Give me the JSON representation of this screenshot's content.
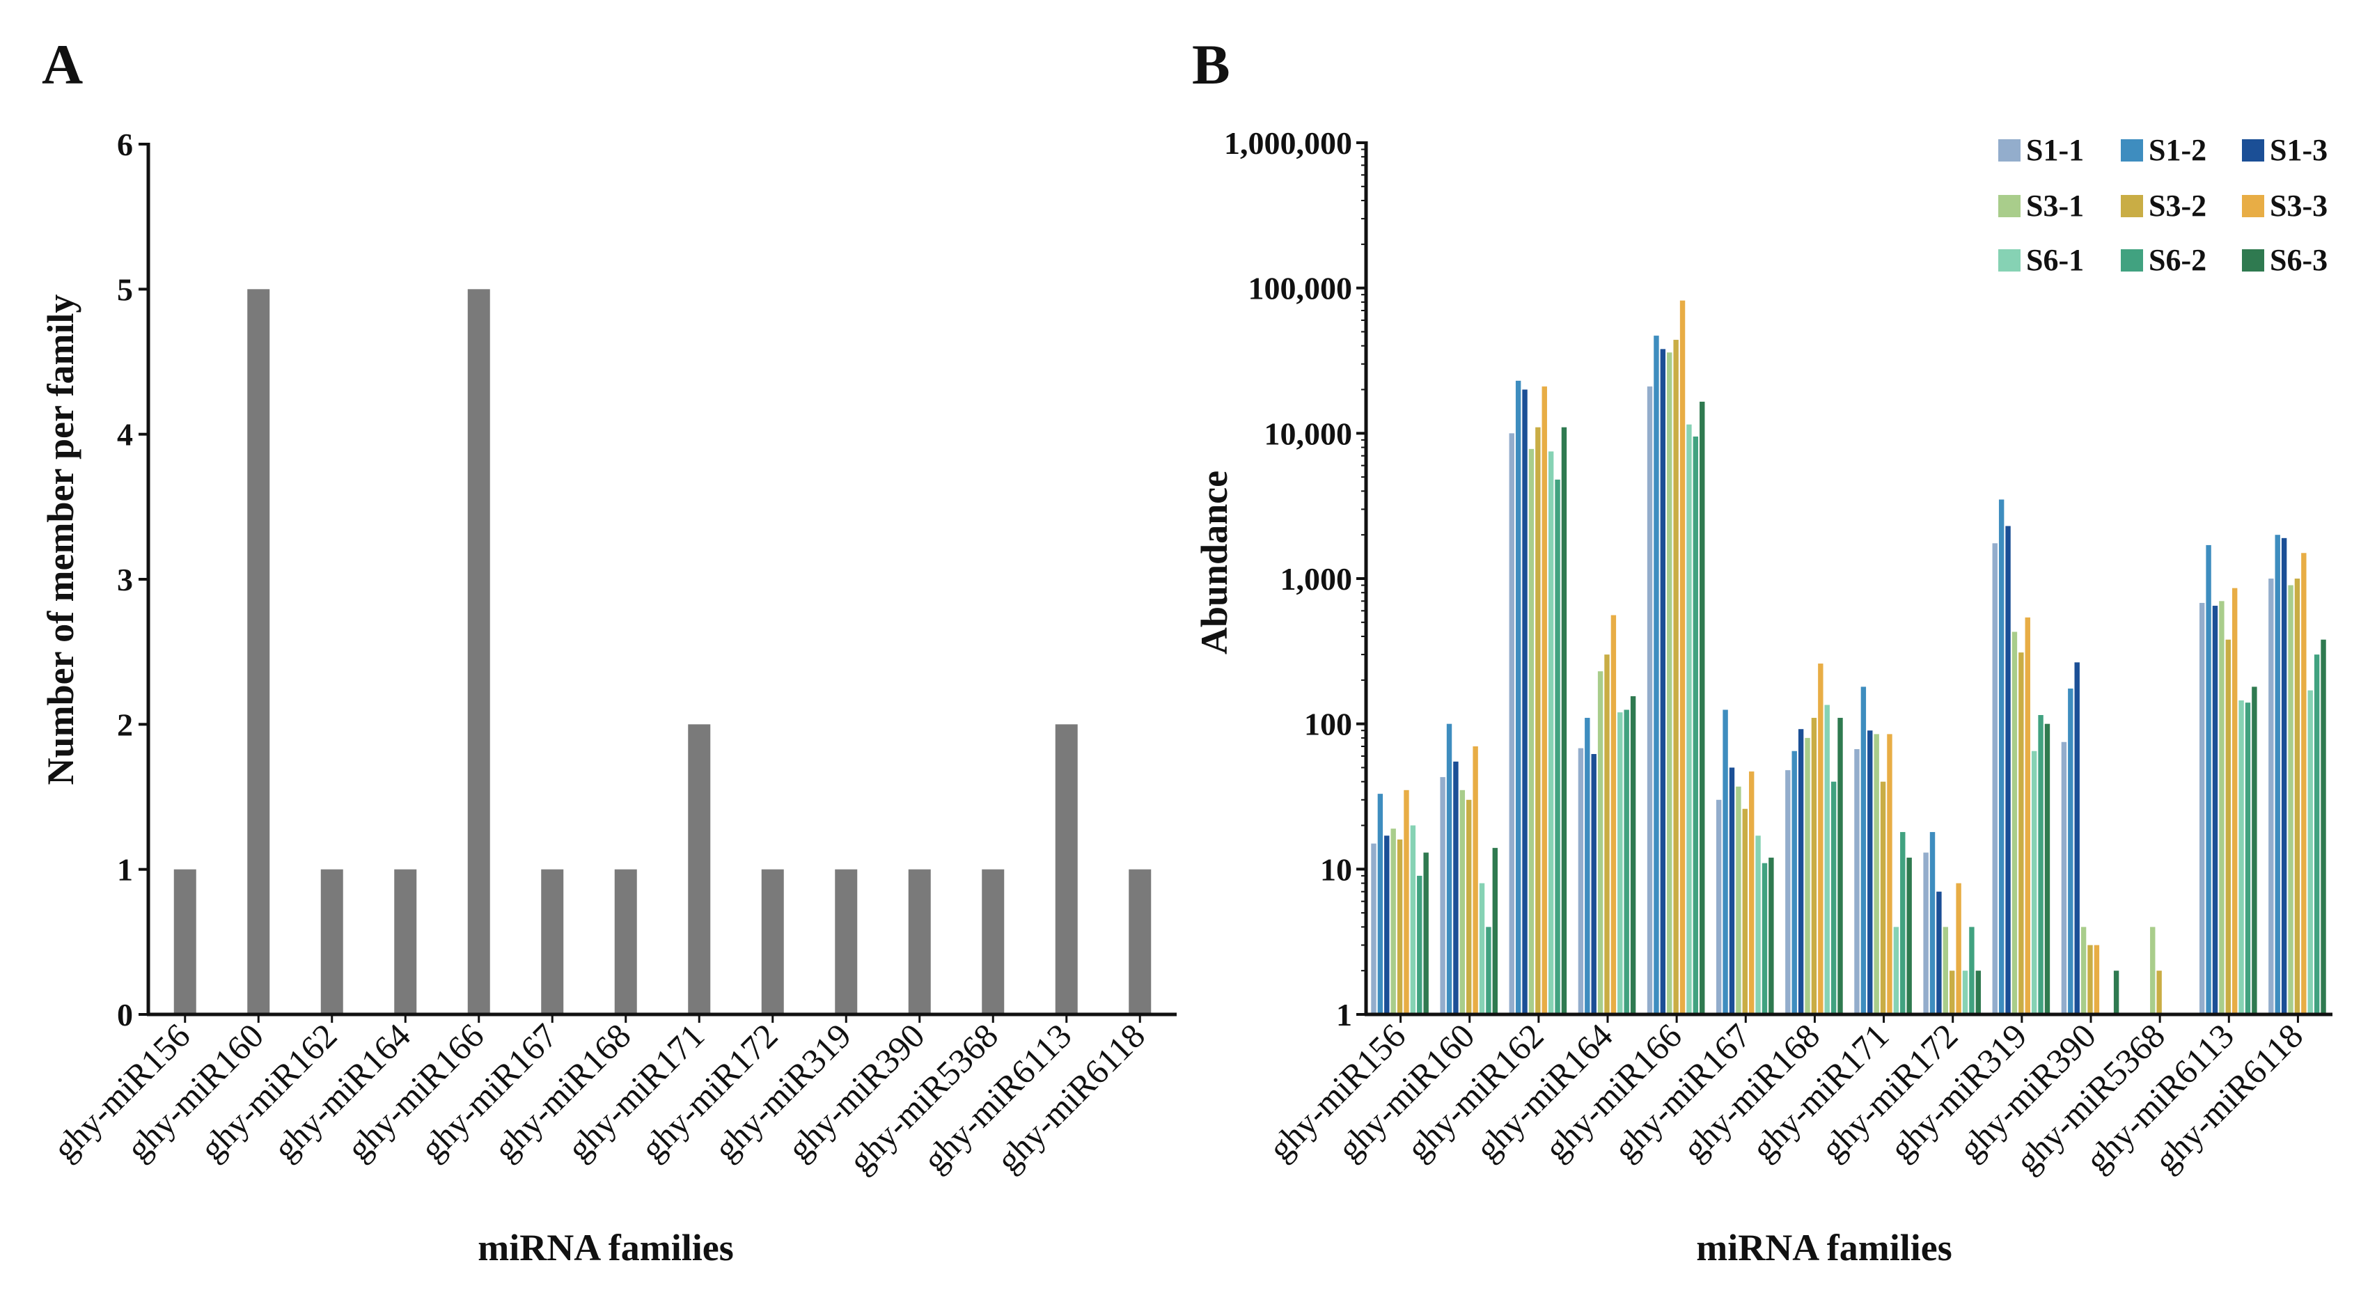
{
  "figure": {
    "panel_a_label": "A",
    "panel_b_label": "B"
  },
  "chart_data": [
    {
      "type": "bar",
      "title": "",
      "xlabel": "miRNA families",
      "ylabel": "Number of member per family",
      "ylim": [
        0,
        6
      ],
      "yticks": [
        "0",
        "1",
        "2",
        "3",
        "4",
        "5",
        "6"
      ],
      "categories": [
        "ghy-miR156",
        "ghy-miR160",
        "ghy-miR162",
        "ghy-miR164",
        "ghy-miR166",
        "ghy-miR167",
        "ghy-miR168",
        "ghy-miR171",
        "ghy-miR172",
        "ghy-miR319",
        "ghy-miR390",
        "ghy-miR5368",
        "ghy-miR6113",
        "ghy-miR6118"
      ],
      "values": [
        1,
        5,
        1,
        1,
        5,
        1,
        1,
        2,
        1,
        1,
        1,
        1,
        2,
        1
      ],
      "bar_color": "#7a7a7a"
    },
    {
      "type": "bar",
      "title": "",
      "xlabel": "miRNA families",
      "ylabel": "Abundance",
      "yscale": "log",
      "ylim": [
        1,
        1000000
      ],
      "yticks": [
        "1",
        "10",
        "100",
        "1,000",
        "10,000",
        "100,000",
        "1,000,000"
      ],
      "legend_position": "top-right",
      "categories": [
        "ghy-miR156",
        "ghy-miR160",
        "ghy-miR162",
        "ghy-miR164",
        "ghy-miR166",
        "ghy-miR167",
        "ghy-miR168",
        "ghy-miR171",
        "ghy-miR172",
        "ghy-miR319",
        "ghy-miR390",
        "ghy-miR5368",
        "ghy-miR6113",
        "ghy-miR6118"
      ],
      "series": [
        {
          "name": "S1-1",
          "color": "#93adcc",
          "values": [
            15,
            43,
            10000,
            68,
            21000,
            30,
            48,
            67,
            13,
            1750,
            75,
            1,
            680,
            1000
          ]
        },
        {
          "name": "S1-2",
          "color": "#3e8dbf",
          "values": [
            33,
            100,
            23000,
            110,
            47000,
            125,
            65,
            180,
            18,
            3500,
            175,
            1,
            1700,
            2000
          ]
        },
        {
          "name": "S1-3",
          "color": "#1b4f96",
          "values": [
            17,
            55,
            20000,
            62,
            38000,
            50,
            92,
            90,
            7,
            2300,
            265,
            1,
            650,
            1900
          ]
        },
        {
          "name": "S3-1",
          "color": "#a9cd8b",
          "values": [
            19,
            35,
            7800,
            230,
            36000,
            37,
            80,
            85,
            4,
            430,
            4,
            4,
            700,
            900
          ]
        },
        {
          "name": "S3-2",
          "color": "#c9ad45",
          "values": [
            16,
            30,
            11000,
            300,
            44000,
            26,
            110,
            40,
            2,
            310,
            3,
            2,
            380,
            1000
          ]
        },
        {
          "name": "S3-3",
          "color": "#e8ad45",
          "values": [
            35,
            70,
            21000,
            560,
            82000,
            47,
            260,
            85,
            8,
            540,
            3,
            1,
            860,
            1500
          ]
        },
        {
          "name": "S6-1",
          "color": "#86d2b4",
          "values": [
            20,
            8,
            7500,
            120,
            11500,
            17,
            135,
            4,
            2,
            65,
            1,
            1,
            145,
            170
          ]
        },
        {
          "name": "S6-2",
          "color": "#41a280",
          "values": [
            9,
            4,
            4800,
            125,
            9500,
            11,
            40,
            18,
            4,
            115,
            1,
            1,
            140,
            300
          ]
        },
        {
          "name": "S6-3",
          "color": "#2f7a50",
          "values": [
            13,
            14,
            11000,
            155,
            16500,
            12,
            110,
            12,
            2,
            100,
            2,
            1,
            180,
            380
          ]
        }
      ]
    }
  ]
}
